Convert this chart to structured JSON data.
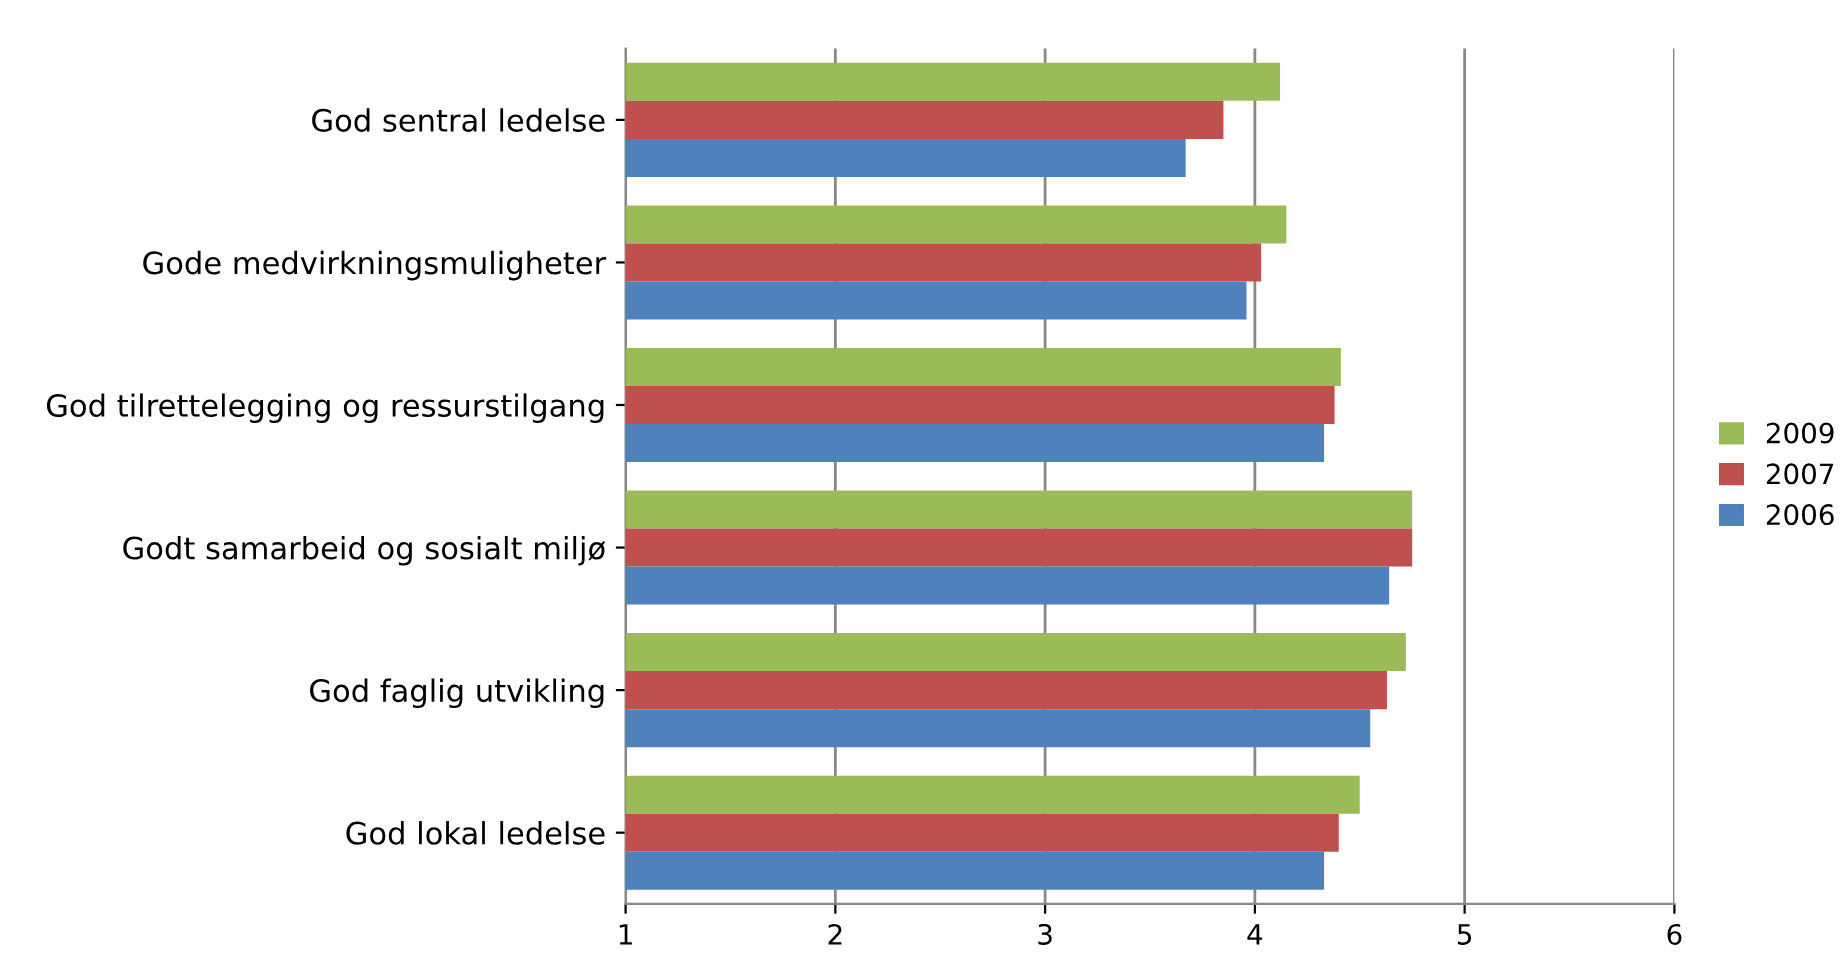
{
  "chart_data": {
    "type": "bar",
    "orientation": "horizontal",
    "categories": [
      "God sentral ledelse",
      "Gode medvirkningsmuligheter",
      "God tilrettelegging og ressurstilgang",
      "Godt samarbeid og sosialt miljø",
      "God faglig utvikling",
      "God lokal ledelse"
    ],
    "series": [
      {
        "name": "2009",
        "color": "#9bbb59",
        "values": [
          4.12,
          4.15,
          4.41,
          4.75,
          4.72,
          4.5
        ]
      },
      {
        "name": "2007",
        "color": "#c0504d",
        "values": [
          3.85,
          4.03,
          4.38,
          4.75,
          4.63,
          4.4
        ]
      },
      {
        "name": "2006",
        "color": "#4f81bd",
        "values": [
          3.67,
          3.96,
          4.33,
          4.64,
          4.55,
          4.33
        ]
      }
    ],
    "xlim": [
      1,
      6
    ],
    "xticks": [
      1,
      2,
      3,
      4,
      5,
      6
    ],
    "grid": "x",
    "legend": "right"
  }
}
